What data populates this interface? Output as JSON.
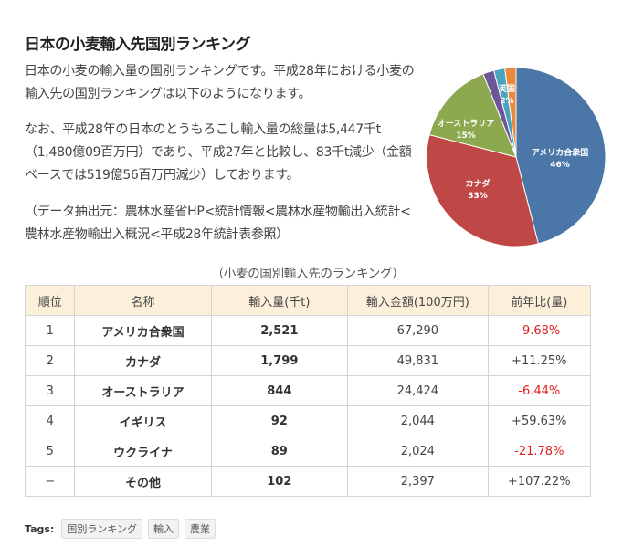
{
  "article": {
    "title": "日本の小麦輸入先国別ランキング",
    "p1": "日本の小麦の輸入量の国別ランキングです。平成28年における小麦の輸入先の国別ランキングは以下のようになります。",
    "p2": "なお、平成28年の日本のとうもろこし輸入量の総量は5,447千t（1,480億09百万円）であり、平成27年と比較し、83千t減少（金額ベースでは519億56百万円減少）しております。",
    "p3": "（データ抽出元：農林水産省HP<統計情報<農林水産物輸出入統計<農林水産物輸出入概況<平成28年統計表参照）"
  },
  "chart_data": {
    "type": "pie",
    "title": "",
    "slices": [
      {
        "label": "アメリカ合衆国",
        "value": 46,
        "display": "46%",
        "color": "#4a76a8"
      },
      {
        "label": "カナダ",
        "value": 33,
        "display": "33%",
        "color": "#bf4846"
      },
      {
        "label": "オーストラリア",
        "value": 15,
        "display": "15%",
        "color": "#8ca94f"
      },
      {
        "label": "英国",
        "value": 2,
        "display": "2%",
        "color": "#6e5598"
      },
      {
        "label": "",
        "value": 2,
        "display": "",
        "color": "#4ba3bd"
      },
      {
        "label": "",
        "value": 2,
        "display": "",
        "color": "#e8893c"
      }
    ]
  },
  "table": {
    "caption": "（小麦の国別輸入先のランキング）",
    "headers": [
      "順位",
      "名称",
      "輸入量(千t)",
      "輸入金額(100万円)",
      "前年比(量)"
    ],
    "rows": [
      {
        "rank": "1",
        "name": "アメリカ合衆国",
        "volume": "2,521",
        "amount": "67,290",
        "ratio": "-9.68%",
        "ratio_neg": true
      },
      {
        "rank": "2",
        "name": "カナダ",
        "volume": "1,799",
        "amount": "49,831",
        "ratio": "+11.25%",
        "ratio_neg": false
      },
      {
        "rank": "3",
        "name": "オーストラリア",
        "volume": "844",
        "amount": "24,424",
        "ratio": "-6.44%",
        "ratio_neg": true
      },
      {
        "rank": "4",
        "name": "イギリス",
        "volume": "92",
        "amount": "2,044",
        "ratio": "+59.63%",
        "ratio_neg": false
      },
      {
        "rank": "5",
        "name": "ウクライナ",
        "volume": "89",
        "amount": "2,024",
        "ratio": "-21.78%",
        "ratio_neg": true
      },
      {
        "rank": "−",
        "name": "その他",
        "volume": "102",
        "amount": "2,397",
        "ratio": "+107.22%",
        "ratio_neg": false
      }
    ]
  },
  "tags": {
    "label": "Tags:",
    "items": [
      "国別ランキング",
      "輸入",
      "農業"
    ]
  },
  "colors": {
    "header_bg": "#fdf0db",
    "negative": "#e02020"
  }
}
